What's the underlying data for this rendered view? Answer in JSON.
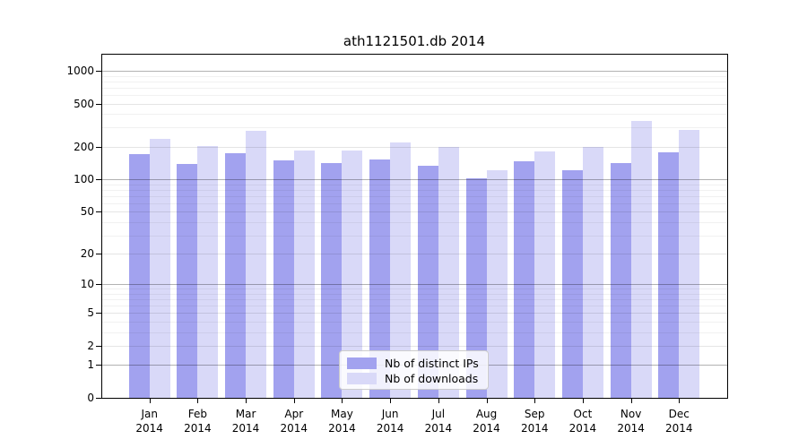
{
  "chart_data": {
    "type": "bar",
    "title": "ath1121501.db 2014",
    "categories": [
      "Jan",
      "Feb",
      "Mar",
      "Apr",
      "May",
      "Jun",
      "Jul",
      "Aug",
      "Sep",
      "Oct",
      "Nov",
      "Dec"
    ],
    "year_label": "2014",
    "series": [
      {
        "name": "Nb of distinct IPs",
        "color": "#a2a2ef",
        "values": [
          170,
          138,
          175,
          150,
          142,
          154,
          134,
          102,
          147,
          122,
          142,
          178
        ]
      },
      {
        "name": "Nb of downloads",
        "color": "#d9d9f8",
        "values": [
          238,
          202,
          278,
          186,
          183,
          218,
          200,
          122,
          180,
          198,
          345,
          288
        ]
      }
    ],
    "xlabel": "",
    "ylabel": "",
    "yscale": "log1p",
    "ylim": [
      0,
      1380
    ],
    "yticks": [
      0,
      1,
      2,
      5,
      10,
      20,
      50,
      100,
      200,
      500,
      1000
    ],
    "major_gridlines": [
      1,
      10,
      100,
      1000
    ],
    "grid": "on",
    "legend_position": "lower-center",
    "background_color": "#ffffff",
    "axis_color": "#000000"
  }
}
